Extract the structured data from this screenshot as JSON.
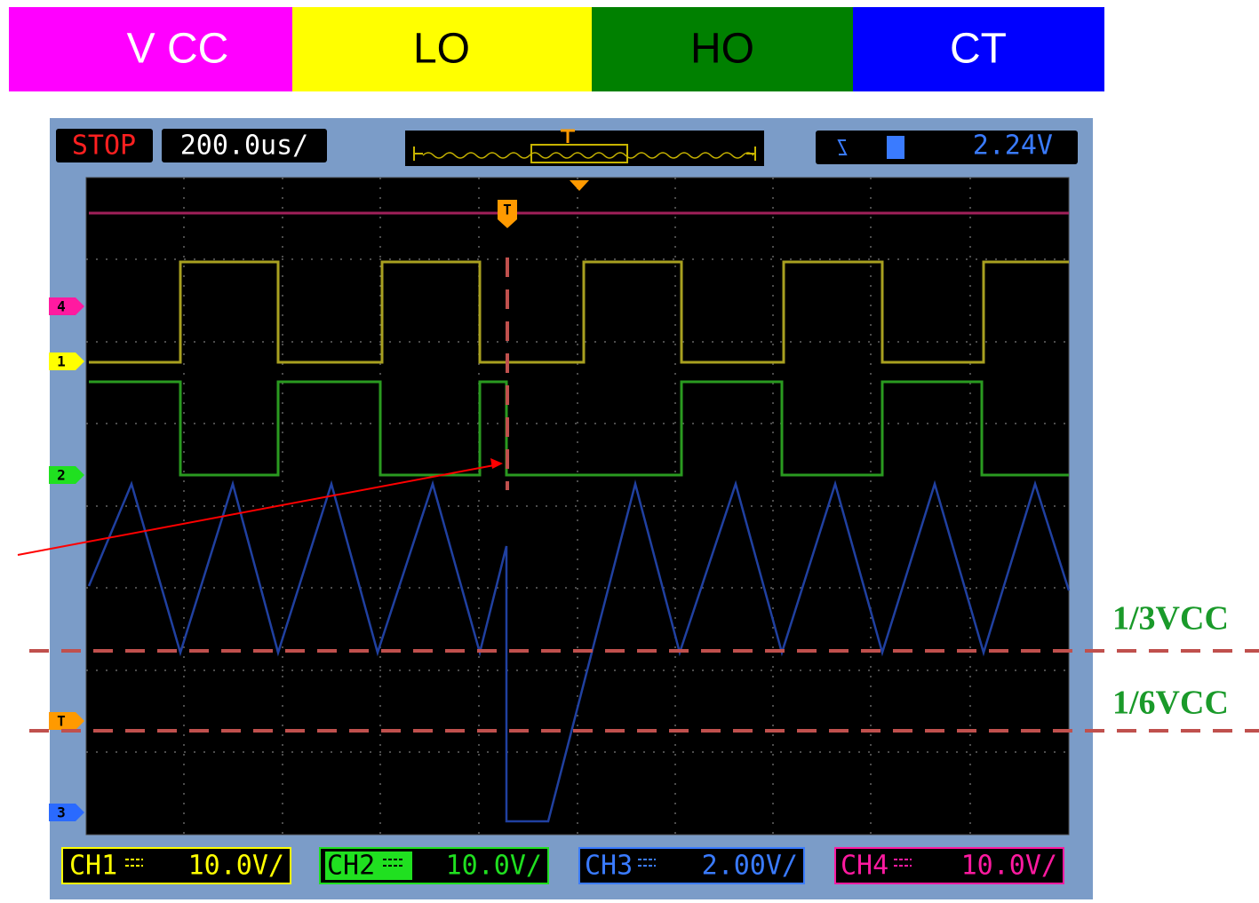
{
  "legend": [
    "V CC",
    "LO",
    "HO",
    "CT"
  ],
  "scope": {
    "status": "STOP",
    "timebase": "200.0us/",
    "trigger_level": "2.24V",
    "trigger_marker": "T",
    "channel_markers": [
      "4",
      "1",
      "2",
      "T",
      "3"
    ],
    "channels": [
      {
        "name": "CH1",
        "scale": "10.0V/"
      },
      {
        "name": "CH2",
        "scale": "10.0V/"
      },
      {
        "name": "CH3",
        "scale": "2.00V/"
      },
      {
        "name": "CH4",
        "scale": "10.0V/"
      }
    ]
  },
  "annotations": [
    "1/3VCC",
    "1/6VCC"
  ]
}
